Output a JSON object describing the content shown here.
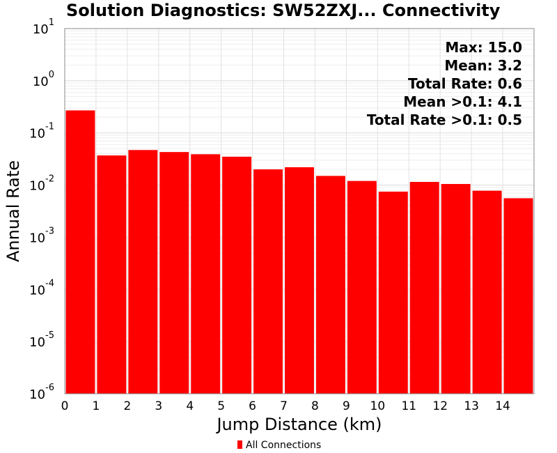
{
  "chart_data": {
    "type": "bar",
    "title": "Solution Diagnostics: SW52ZXJ... Connectivity",
    "xlabel": "Jump Distance (km)",
    "ylabel": "Annual Rate",
    "y_scale": "log",
    "ylim": [
      1e-06,
      10
    ],
    "y_ticks": [
      {
        "base": "10",
        "exp": "-6",
        "value": 1e-06
      },
      {
        "base": "10",
        "exp": "-5",
        "value": 1e-05
      },
      {
        "base": "10",
        "exp": "-4",
        "value": 0.0001
      },
      {
        "base": "10",
        "exp": "-3",
        "value": 0.001
      },
      {
        "base": "10",
        "exp": "-2",
        "value": 0.01
      },
      {
        "base": "10",
        "exp": "-1",
        "value": 0.1
      },
      {
        "base": "10",
        "exp": "0",
        "value": 1
      },
      {
        "base": "10",
        "exp": "1",
        "value": 10
      }
    ],
    "xlim": [
      0,
      15
    ],
    "x_ticks": [
      "0",
      "1",
      "2",
      "3",
      "4",
      "5",
      "6",
      "7",
      "8",
      "9",
      "10",
      "11",
      "12",
      "13",
      "14"
    ],
    "bin_width": 1,
    "bins_start": [
      0,
      1,
      2,
      3,
      4,
      5,
      6,
      7,
      8,
      9,
      10,
      11,
      12,
      13,
      14
    ],
    "series": [
      {
        "name": "All Connections",
        "color": "#ff0000",
        "values": [
          0.27,
          0.037,
          0.047,
          0.043,
          0.039,
          0.035,
          0.02,
          0.022,
          0.015,
          0.012,
          0.0075,
          0.0115,
          0.0105,
          0.0078,
          0.0056
        ]
      }
    ],
    "annotations": [
      "Max: 15.0",
      "Mean: 3.2",
      "Total Rate: 0.6",
      "Mean >0.1: 4.1",
      "Total Rate >0.1: 0.5"
    ],
    "grid": true,
    "legend_position": "bottom"
  }
}
